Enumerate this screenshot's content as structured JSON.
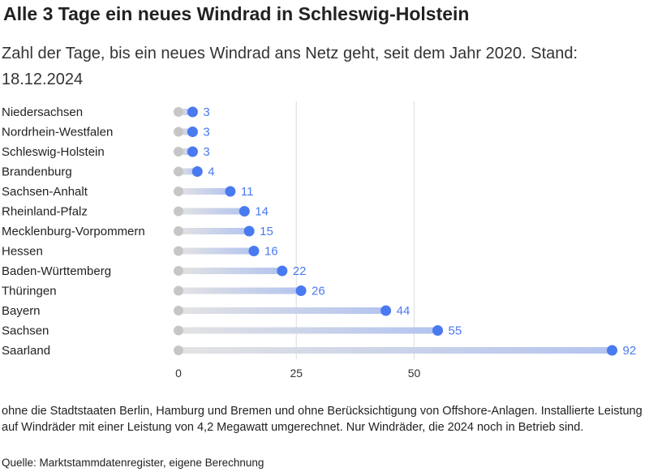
{
  "title": "Alle 3 Tage ein neues Windrad in Schleswig-Holstein",
  "subtitle": "Zahl der Tage, bis ein neues Windrad ans Netz geht, seit dem Jahr 2020. Stand: 18.12.2024",
  "note": "ohne die Stadtstaaten Berlin, Hamburg und Bremen und ohne Berücksichtigung von Offshore-Anlagen. Installierte Leistung auf Windräder mit einer Leistung von 4,2 Megawatt umgerechnet. Nur Windräder, die 2024 noch in Betrieb sind.",
  "source": "Quelle: Marktstammdatenregister, eigene Berechnung",
  "colors": {
    "dot": "#4a7af0",
    "bar": "#b3c4ef",
    "start": "#c6c6c6",
    "grid": "#dddddd",
    "label": "#4a7af0"
  },
  "chart_data": {
    "type": "dot",
    "categories": [
      "Niedersachsen",
      "Nordrhein-Westfalen",
      "Schleswig-Holstein",
      "Brandenburg",
      "Sachsen-Anhalt",
      "Rheinland-Pfalz",
      "Mecklenburg-Vorpommern",
      "Hessen",
      "Baden-Württemberg",
      "Thüringen",
      "Bayern",
      "Sachsen",
      "Saarland"
    ],
    "values": [
      3,
      3,
      3,
      4,
      11,
      14,
      15,
      16,
      22,
      26,
      44,
      55,
      92
    ],
    "xticks": [
      0,
      25,
      50
    ],
    "xlim": [
      0,
      92
    ],
    "grid": true
  }
}
